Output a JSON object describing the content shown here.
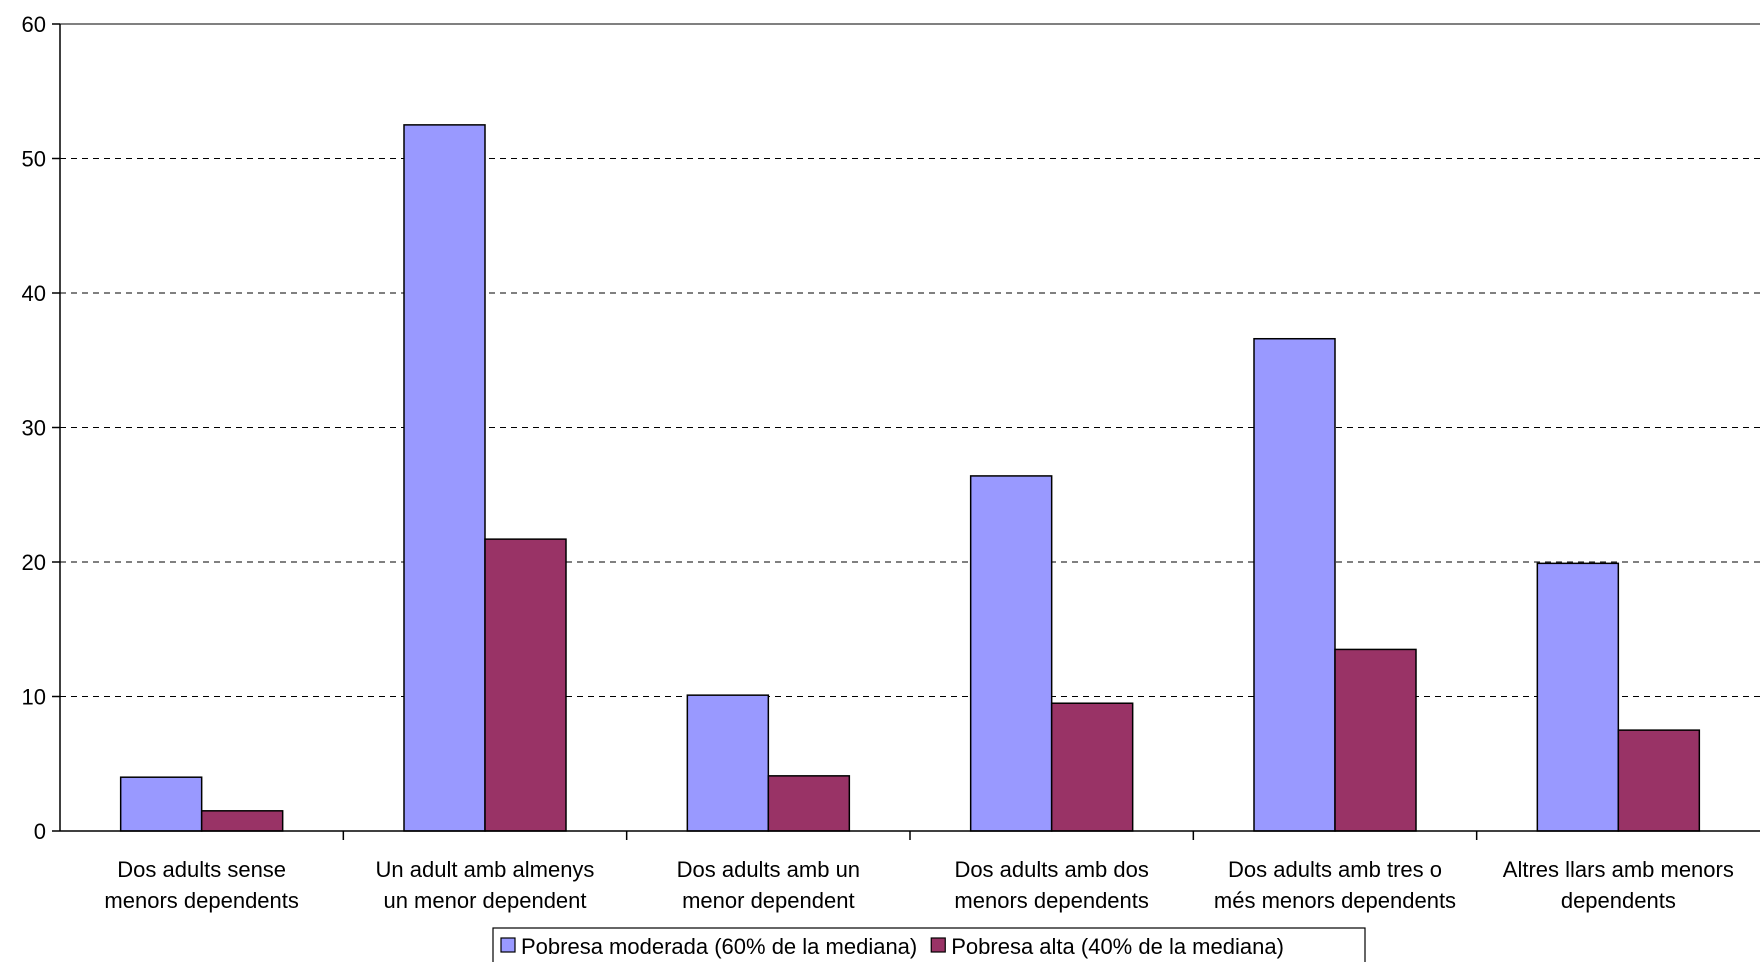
{
  "chart_data": {
    "type": "bar",
    "title": "",
    "xlabel": "",
    "ylabel": "",
    "ylim": [
      0,
      60
    ],
    "yticks": [
      0,
      10,
      20,
      30,
      40,
      50,
      60
    ],
    "grid": "horizontal dashed",
    "legend_position": "bottom",
    "categories": [
      [
        "Dos adults sense",
        "menors dependents"
      ],
      [
        "Un adult amb almenys",
        "un menor dependent"
      ],
      [
        "Dos adults amb un",
        "menor dependent"
      ],
      [
        "Dos adults amb dos",
        "menors dependents"
      ],
      [
        "Dos adults amb tres o",
        "més menors dependents"
      ],
      [
        "Altres llars amb menors",
        "dependents"
      ]
    ],
    "series": [
      {
        "name": "Pobresa moderada (60% de la mediana)",
        "color": "#9999ff",
        "values": [
          4.0,
          52.5,
          10.1,
          26.4,
          36.6,
          19.9
        ]
      },
      {
        "name": "Pobresa alta (40% de la mediana)",
        "color": "#993366",
        "values": [
          1.5,
          21.7,
          4.1,
          9.5,
          13.5,
          7.5
        ]
      }
    ]
  }
}
